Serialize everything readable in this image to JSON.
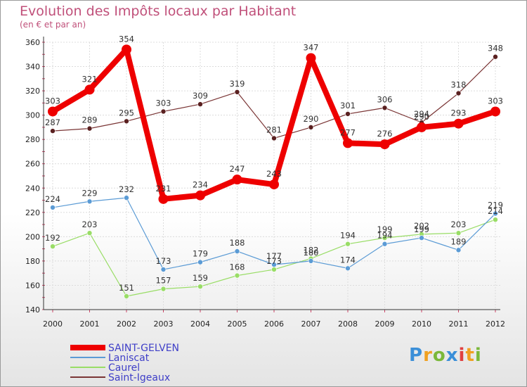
{
  "chart_data": {
    "type": "line",
    "title": "Evolution des Impôts locaux par Habitant",
    "subtitle": "(en € et par an)",
    "categories": [
      "2000",
      "2001",
      "2002",
      "2003",
      "2004",
      "2005",
      "2006",
      "2007",
      "2008",
      "2009",
      "2010",
      "2011",
      "2012"
    ],
    "ylim": [
      140,
      360
    ],
    "yticks": [
      140,
      160,
      180,
      200,
      220,
      240,
      260,
      280,
      300,
      320,
      340,
      360
    ],
    "series": [
      {
        "name": "SAINT-GELVEN",
        "color": "#ee0000",
        "values": [
          303,
          321,
          354,
          231,
          234,
          247,
          243,
          347,
          277,
          276,
          290,
          293,
          303
        ]
      },
      {
        "name": "Laniscat",
        "color": "#5b9bd5",
        "values": [
          224,
          229,
          232,
          173,
          179,
          188,
          177,
          180,
          174,
          194,
          199,
          189,
          219
        ]
      },
      {
        "name": "Caurel",
        "color": "#99dd66",
        "values": [
          192,
          203,
          151,
          157,
          159,
          168,
          173,
          182,
          194,
          199,
          202,
          203,
          214
        ]
      },
      {
        "name": "Saint-Igeaux",
        "color": "#7a3535",
        "values": [
          287,
          289,
          295,
          303,
          309,
          319,
          281,
          290,
          301,
          306,
          294,
          318,
          348
        ]
      }
    ]
  },
  "logo": {
    "letters": [
      "P",
      "r",
      "o",
      "x",
      "i",
      "t",
      "i"
    ],
    "colors": [
      "#3b8fd8",
      "#f0a020",
      "#7ab83a",
      "#3b8fd8",
      "#e04040",
      "#f0a020",
      "#7ab83a"
    ]
  }
}
